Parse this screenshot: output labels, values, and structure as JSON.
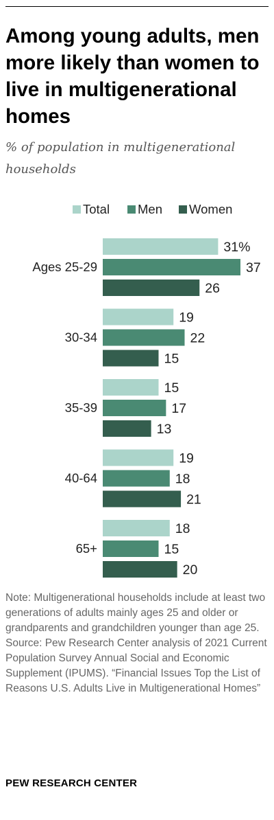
{
  "title": "Among young adults, men more likely than women to live in multigenerational homes",
  "subtitle": "% of population in multigenerational households",
  "chart_data": {
    "type": "bar",
    "orientation": "horizontal",
    "title": "Among young adults, men more likely than women to live in multigenerational homes",
    "subtitle": "% of population in multigenerational households",
    "categories": [
      "Ages 25-29",
      "30-34",
      "35-39",
      "40-64",
      "65+"
    ],
    "series": [
      {
        "name": "Total",
        "color": "#abd4ca",
        "values": [
          31,
          19,
          15,
          19,
          18
        ],
        "labels": [
          "31%",
          "19",
          "15",
          "19",
          "18"
        ]
      },
      {
        "name": "Men",
        "color": "#4a8a73",
        "values": [
          37,
          22,
          17,
          18,
          15
        ],
        "labels": [
          "37",
          "22",
          "17",
          "18",
          "15"
        ]
      },
      {
        "name": "Women",
        "color": "#345e4e",
        "values": [
          26,
          15,
          13,
          21,
          20
        ],
        "labels": [
          "26",
          "15",
          "13",
          "21",
          "20"
        ]
      }
    ],
    "legend_position": "top",
    "xlim": [
      0,
      37
    ],
    "grid": false
  },
  "note": "Note: Multigenerational households include at least two generations of adults mainly ages 25 and older or grandparents and grandchildren younger than age 25.",
  "source": "Source: Pew Research Center analysis of 2021 Current Population Survey Annual Social and Economic Supplement (IPUMS).",
  "report": "“Financial Issues Top the List of Reasons U.S. Adults Live in Multigenerational Homes”",
  "footer": "PEW RESEARCH CENTER"
}
